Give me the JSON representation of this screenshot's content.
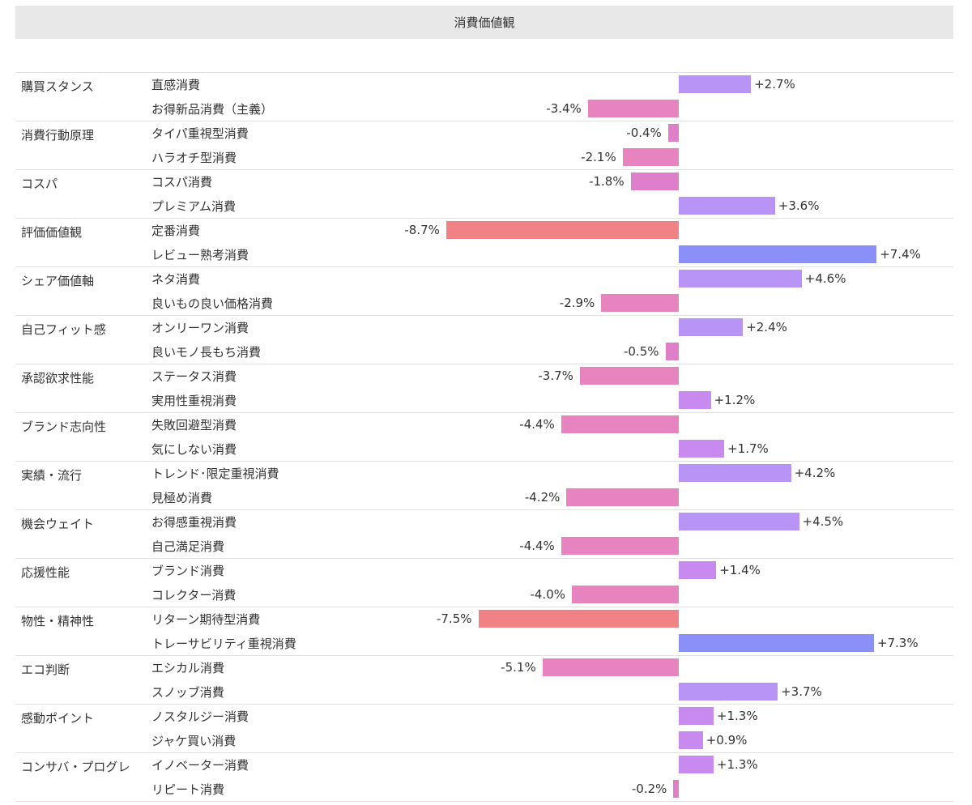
{
  "title": "消費価値観",
  "chart_data": {
    "type": "bar",
    "orientation": "horizontal-diverging",
    "title": "消費価値観",
    "groups": [
      {
        "label": "購買スタンス",
        "items": [
          {
            "label": "直感消費",
            "value": 2.7,
            "display": "+2.7%"
          },
          {
            "label": "お得新品消費（主義）",
            "value": -3.4,
            "display": "-3.4%"
          }
        ]
      },
      {
        "label": "消費行動原理",
        "items": [
          {
            "label": "タイパ重視型消費",
            "value": -0.4,
            "display": "-0.4%"
          },
          {
            "label": "ハラオチ型消費",
            "value": -2.1,
            "display": "-2.1%"
          }
        ]
      },
      {
        "label": "コスパ",
        "items": [
          {
            "label": "コスパ消費",
            "value": -1.8,
            "display": "-1.8%"
          },
          {
            "label": "プレミアム消費",
            "value": 3.6,
            "display": "+3.6%"
          }
        ]
      },
      {
        "label": "評価価値観",
        "items": [
          {
            "label": "定番消費",
            "value": -8.7,
            "display": "-8.7%"
          },
          {
            "label": "レビュー熟考消費",
            "value": 7.4,
            "display": "+7.4%"
          }
        ]
      },
      {
        "label": "シェア価値軸",
        "items": [
          {
            "label": "ネタ消費",
            "value": 4.6,
            "display": "+4.6%"
          },
          {
            "label": "良いもの良い価格消費",
            "value": -2.9,
            "display": "-2.9%"
          }
        ]
      },
      {
        "label": "自己フィット感",
        "items": [
          {
            "label": "オンリーワン消費",
            "value": 2.4,
            "display": "+2.4%"
          },
          {
            "label": "良いモノ長もち消費",
            "value": -0.5,
            "display": "-0.5%"
          }
        ]
      },
      {
        "label": "承認欲求性能",
        "items": [
          {
            "label": "ステータス消費",
            "value": -3.7,
            "display": "-3.7%"
          },
          {
            "label": "実用性重視消費",
            "value": 1.2,
            "display": "+1.2%"
          }
        ]
      },
      {
        "label": "ブランド志向性",
        "items": [
          {
            "label": "失敗回避型消費",
            "value": -4.4,
            "display": "-4.4%"
          },
          {
            "label": "気にしない消費",
            "value": 1.7,
            "display": "+1.7%"
          }
        ]
      },
      {
        "label": "実績・流行",
        "items": [
          {
            "label": "トレンド･限定重視消費",
            "value": 4.2,
            "display": "+4.2%"
          },
          {
            "label": "見極め消費",
            "value": -4.2,
            "display": "-4.2%"
          }
        ]
      },
      {
        "label": "機会ウェイト",
        "items": [
          {
            "label": "お得感重視消費",
            "value": 4.5,
            "display": "+4.5%"
          },
          {
            "label": "自己満足消費",
            "value": -4.4,
            "display": "-4.4%"
          }
        ]
      },
      {
        "label": "応援性能",
        "items": [
          {
            "label": "ブランド消費",
            "value": 1.4,
            "display": "+1.4%"
          },
          {
            "label": "コレクター消費",
            "value": -4.0,
            "display": "-4.0%"
          }
        ]
      },
      {
        "label": "物性・精神性",
        "items": [
          {
            "label": "リターン期待型消費",
            "value": -7.5,
            "display": "-7.5%"
          },
          {
            "label": "トレーサビリティ重視消費",
            "value": 7.3,
            "display": "+7.3%"
          }
        ]
      },
      {
        "label": "エコ判断",
        "items": [
          {
            "label": "エシカル消費",
            "value": -5.1,
            "display": "-5.1%"
          },
          {
            "label": "スノッブ消費",
            "value": 3.7,
            "display": "+3.7%"
          }
        ]
      },
      {
        "label": "感動ポイント",
        "items": [
          {
            "label": "ノスタルジー消費",
            "value": 1.3,
            "display": "+1.3%"
          },
          {
            "label": "ジャケ買い消費",
            "value": 0.9,
            "display": "+0.9%"
          }
        ]
      },
      {
        "label": "コンサバ・プログレ",
        "items": [
          {
            "label": "イノベーター消費",
            "value": 1.3,
            "display": "+1.3%"
          },
          {
            "label": "リピート消費",
            "value": -0.2,
            "display": "-0.2%"
          }
        ]
      }
    ],
    "xlim": [
      -10,
      10
    ],
    "colors": {
      "negative_small": "#e07fc9",
      "negative_mid": "#e783bf",
      "negative_large": "#f08286",
      "positive_small": "#c98af0",
      "positive_mid": "#b794f6",
      "positive_large": "#8b8ff8"
    }
  }
}
